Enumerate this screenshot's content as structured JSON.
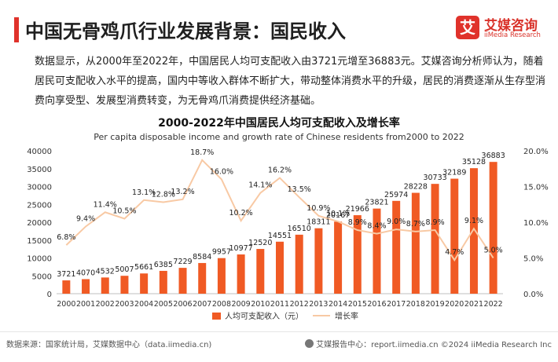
{
  "header": {
    "title": "中国无骨鸡爪行业发展背景：国民收入",
    "logo_mark": "艾",
    "logo_cn": "艾媒咨询",
    "logo_en": "iiMedia Research"
  },
  "summary": "数据显示，从2000年至2022年，中国居民人均可支配收入由3721元增至36883元。艾媒咨询分析师认为，随着居民可支配收入水平的提高，国内中等收入群体不断扩大，带动整体消费水平的升级，居民的消费逐渐从生存型消费向享受型、发展型消费转变，为无骨鸡爪消费提供经济基础。",
  "chart_data": {
    "type": "bar",
    "title": "2000-2022年中国居民人均可支配收入及增长率",
    "subtitle": "Per capita disposable income and growth rate of Chinese residents from2000 to 2022",
    "categories": [
      "2000",
      "2001",
      "2002",
      "2003",
      "2004",
      "2005",
      "2006",
      "2007",
      "2008",
      "2009",
      "2010",
      "2011",
      "2012",
      "2013",
      "2014",
      "2015",
      "2016",
      "2017",
      "2018",
      "2019",
      "2020",
      "2021",
      "2022"
    ],
    "series": [
      {
        "name": "人均可支配收入（元）",
        "type": "bar",
        "axis": "left",
        "color": "#f05a24",
        "values": [
          3721,
          4070,
          4532,
          5007,
          5661,
          6385,
          7229,
          8584,
          9957,
          10977,
          12520,
          14551,
          16510,
          18311,
          20167,
          21966,
          23821,
          25974,
          28228,
          30733,
          32189,
          35128,
          36883
        ]
      },
      {
        "name": "增长率",
        "type": "line",
        "axis": "right",
        "color": "#f8c9a4",
        "values": [
          6.8,
          9.4,
          11.4,
          10.5,
          13.1,
          12.8,
          13.2,
          18.7,
          16.0,
          10.2,
          14.1,
          16.2,
          13.5,
          10.9,
          10.1,
          8.9,
          8.4,
          9.0,
          8.7,
          8.9,
          4.7,
          9.1,
          5.0
        ],
        "labels": [
          "6.8%",
          "9.4%",
          "11.4%",
          "10.5%",
          "13.1%",
          "12.8%",
          "13.2%",
          "18.7%",
          "16.0%",
          "10.2%",
          "14.1%",
          "16.2%",
          "13.5%",
          "10.9%",
          "10.1%",
          "8.9%",
          "8.4%",
          "9.0%",
          "8.7%",
          "8.9%",
          "4.7%",
          "9.1%",
          "5.0%"
        ]
      }
    ],
    "ylim": [
      0,
      40000
    ],
    "yticks": [
      "0",
      "5000",
      "10000",
      "15000",
      "20000",
      "25000",
      "30000",
      "35000",
      "40000"
    ],
    "y2lim": [
      0,
      20
    ],
    "y2ticks": [
      "0.0%",
      "5.0%",
      "10.0%",
      "15.0%",
      "20.0%"
    ],
    "grid": false,
    "legend_position": "bottom"
  },
  "footer": {
    "source": "数据来源：国家统计局，艾媒数据中心（data.iimedia.cn)",
    "right": "艾媒报告中心：report.iimedia.cn  ©2024  iiMedia Research  Inc"
  }
}
